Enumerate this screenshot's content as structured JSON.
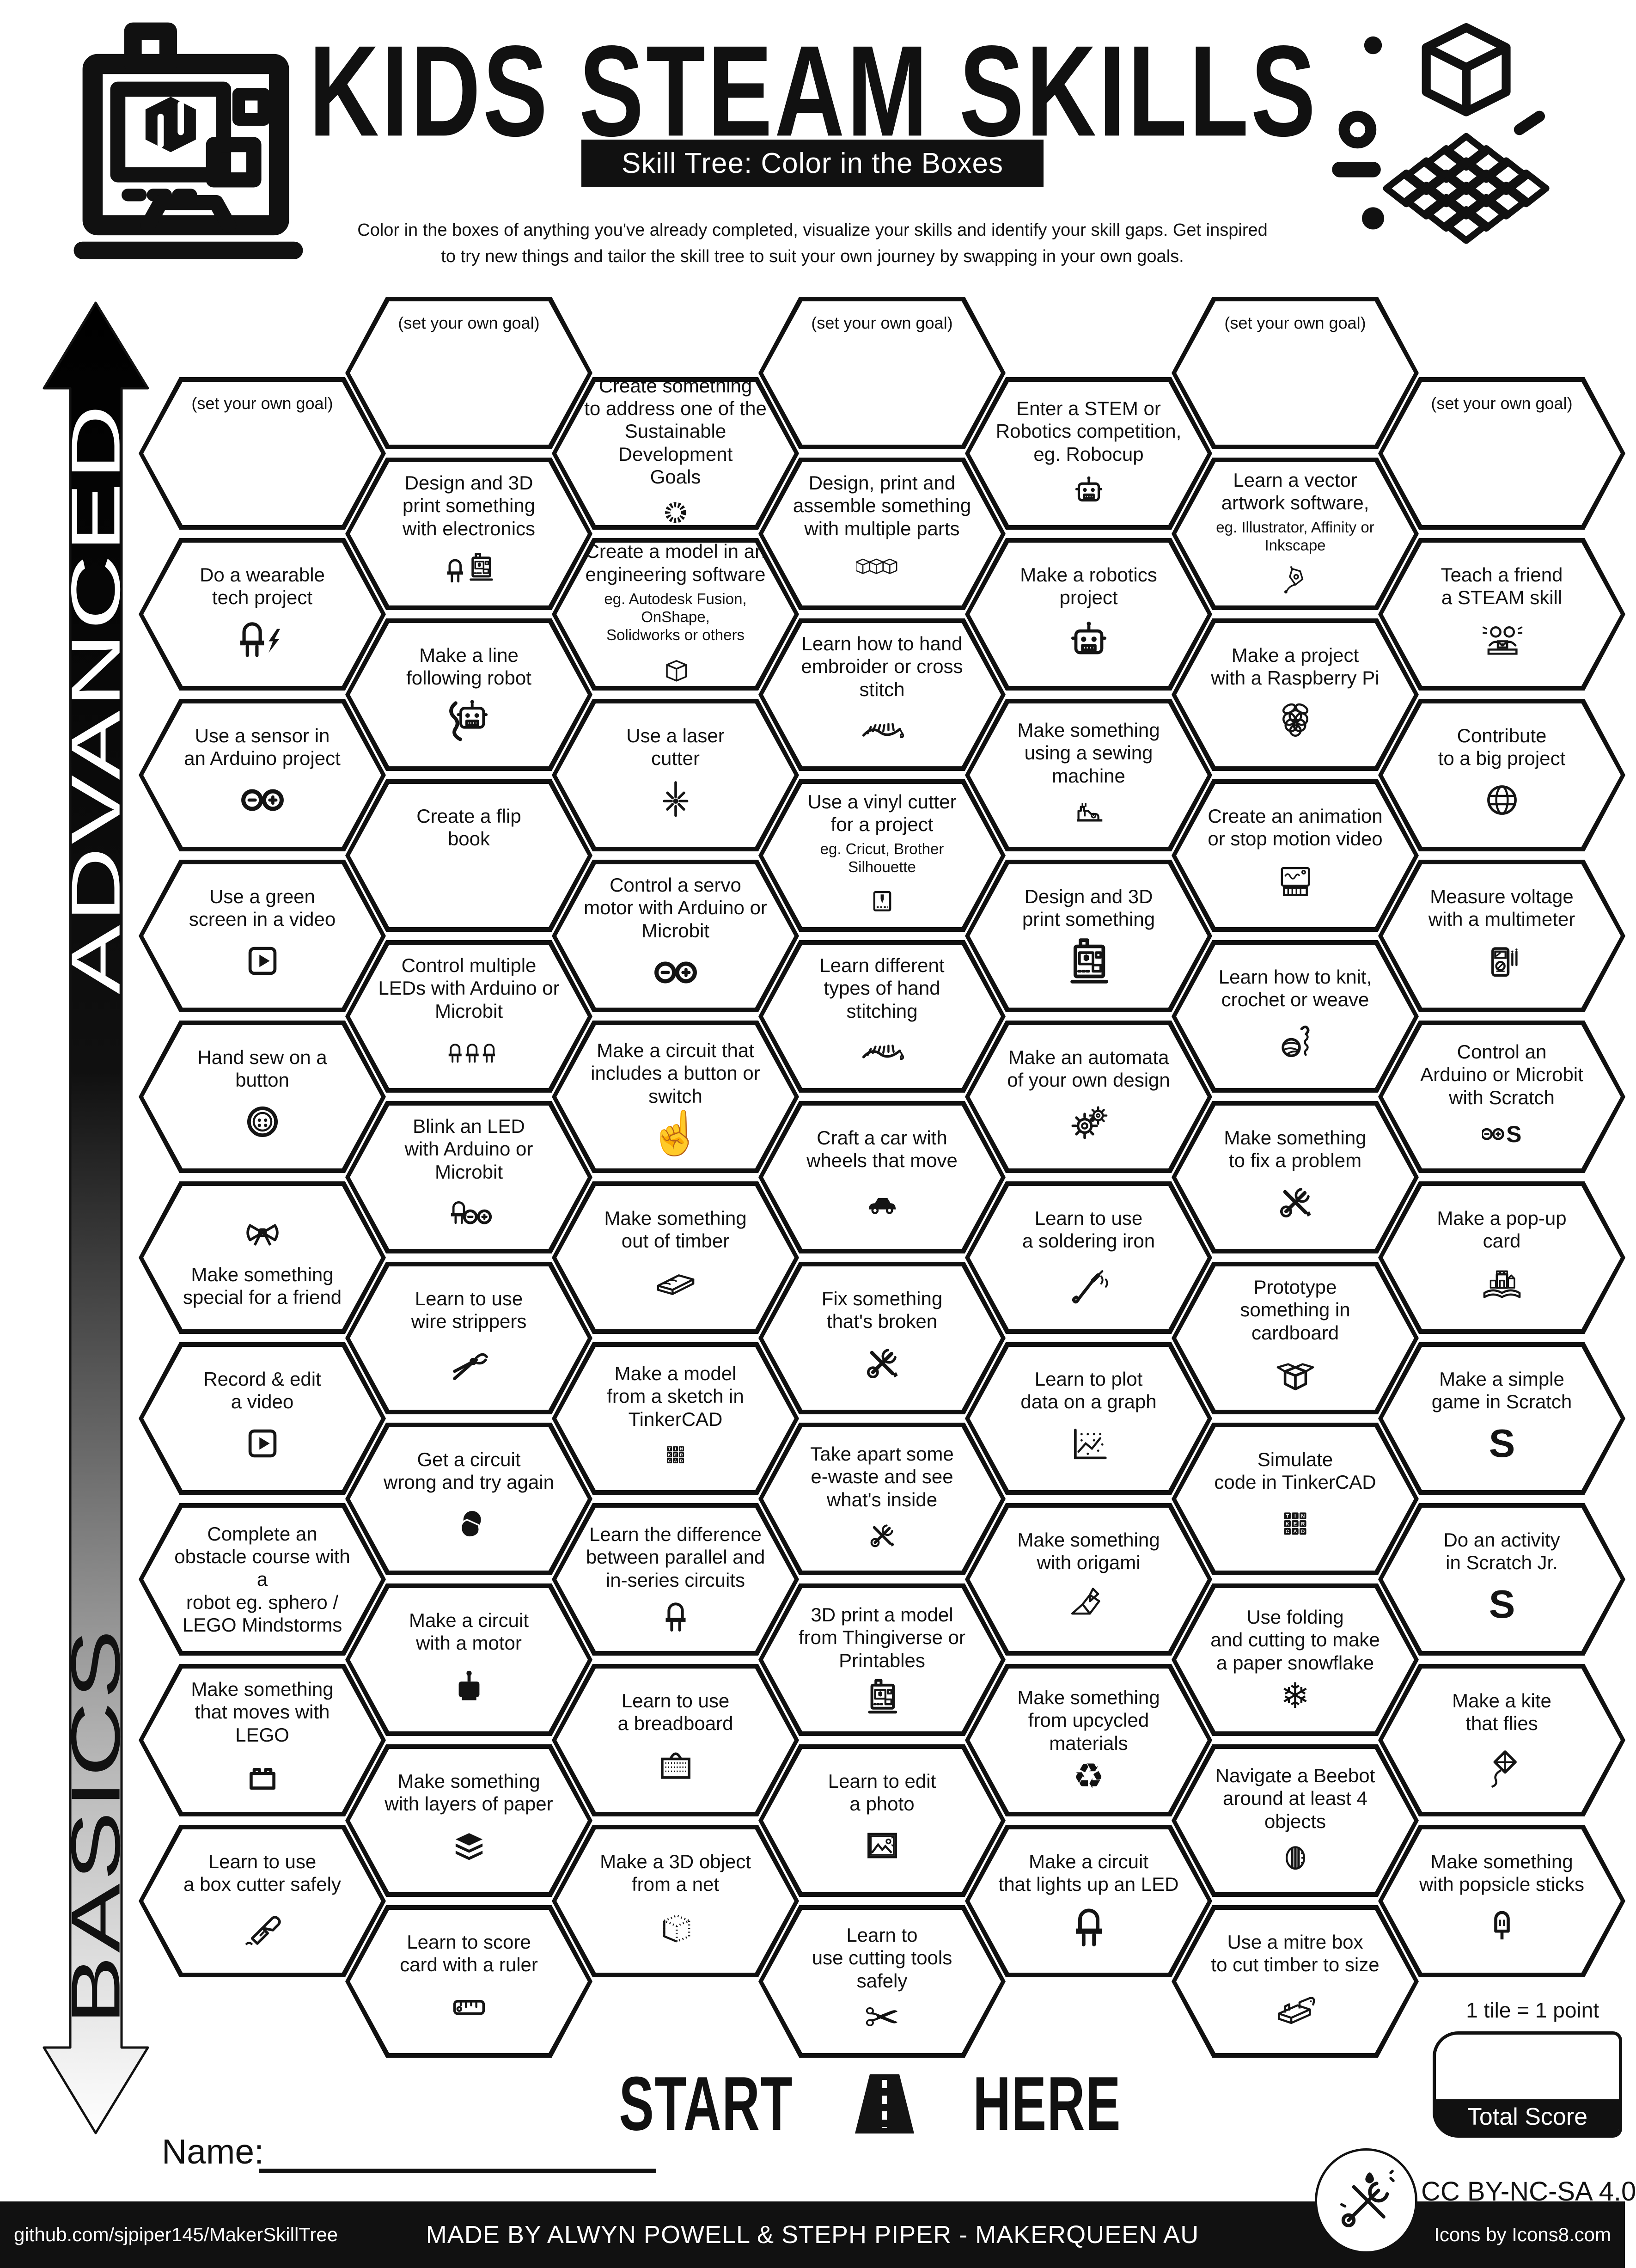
{
  "colors": {
    "ink": "#111111",
    "paper": "#ffffff"
  },
  "header": {
    "title": "KIDS STEAM SKILLS",
    "subtitle": "Skill Tree: Color in the Boxes",
    "description": "Color in the boxes of anything you've already completed, visualize your skills and identify your skill gaps.  Get inspired\nto try new things and tailor the skill tree to suit your own journey by swapping in your own goals."
  },
  "axis": {
    "top_label": "ADVANCED",
    "bottom_label": "BASICS"
  },
  "grid": {
    "columns": [
      {
        "tiles": [
          {
            "goal": true,
            "label": "(set your own goal)"
          },
          {
            "label": "Do a wearable\ntech project",
            "icon": "ledbolt"
          },
          {
            "label": "Use a sensor in\nan Arduino project",
            "icon": "arduino"
          },
          {
            "label": "Use a green\nscreen in a video",
            "icon": "play"
          },
          {
            "label": "Hand sew on a\nbutton",
            "icon": "button"
          },
          {
            "label": "Make something\nspecial for a friend",
            "icon": "bow",
            "icon_first": true
          },
          {
            "label": "Record & edit\na video",
            "icon": "play"
          },
          {
            "label": "Complete an\nobstacle course with a\nrobot eg. sphero /\nLEGO Mindstorms"
          },
          {
            "label": "Make something\nthat moves with\nLEGO",
            "icon": "lego"
          },
          {
            "label": "Learn to use\na box cutter safely",
            "icon": "boxcutter"
          }
        ]
      },
      {
        "tiles": [
          {
            "goal": true,
            "label": "(set your own goal)"
          },
          {
            "label": "Design and 3D\nprint something\nwith electronics",
            "icon": "ledprinter"
          },
          {
            "label": "Make a line\nfollowing robot",
            "icon": "linerobot"
          },
          {
            "label": "Create a flip\nbook",
            "icon": "book"
          },
          {
            "label": "Control multiple\nLEDs with Arduino or\nMicrobit",
            "icon": "leds3"
          },
          {
            "label": "Blink an LED\nwith Arduino or\nMicrobit",
            "icon": "ledarduino"
          },
          {
            "label": "Learn to use\nwire strippers",
            "icon": "strippers"
          },
          {
            "label": "Get a circuit\nwrong and try again",
            "icon": "facepalm"
          },
          {
            "label": "Make a circuit\nwith a motor",
            "icon": "motor"
          },
          {
            "label": "Make something\nwith layers of paper",
            "icon": "layers"
          },
          {
            "label": "Learn to score\ncard with a ruler",
            "icon": "ruler"
          }
        ]
      },
      {
        "tiles": [
          {
            "label": "Create something\nto address one of the\nSustainable Development\nGoals",
            "icon": "sdg",
            "icon_small": true
          },
          {
            "label": "Create a model in an\nengineering software",
            "sub": "eg. Autodesk Fusion, OnShape,\nSolidworks or others",
            "icon": "cube",
            "icon_small": true
          },
          {
            "label": "Use a laser\ncutter",
            "icon": "laser"
          },
          {
            "label": "Control a servo\nmotor with Arduino or\nMicrobit",
            "icon": "arduino"
          },
          {
            "label": "Make a circuit that\nincludes a button or\nswitch",
            "icon": "press",
            "glyph": "☝"
          },
          {
            "label": "Make something\nout of timber",
            "icon": "timber"
          },
          {
            "label": "Make a model\nfrom a sketch in\nTinkerCAD",
            "icon": "tinkercad",
            "icon_small": true
          },
          {
            "label": "Learn the difference\nbetween parallel and\nin-series circuits",
            "icon": "led",
            "icon_small": true
          },
          {
            "label": "Learn to use\na breadboard",
            "icon": "breadboard"
          },
          {
            "label": "Make a 3D object\nfrom a net",
            "icon": "netcube"
          }
        ]
      },
      {
        "tiles": [
          {
            "goal": true,
            "label": "(set your own goal)"
          },
          {
            "label": "Design, print and\nassemble something\nwith multiple parts",
            "icon": "cubes3"
          },
          {
            "label": "Learn how to hand\nembroider or cross stitch",
            "icon": "stitch"
          },
          {
            "label": "Use a vinyl cutter\nfor a project",
            "sub": "eg. Cricut, Brother\nSilhouette",
            "icon": "vinyl",
            "icon_small": true
          },
          {
            "label": "Learn different\ntypes of hand stitching",
            "icon": "stitch"
          },
          {
            "label": "Craft a car with\nwheels that move",
            "icon": "car"
          },
          {
            "label": "Fix something\nthat's broken",
            "icon": "tools"
          },
          {
            "label": "Take apart some\ne-waste and see\nwhat's inside",
            "icon": "tools",
            "icon_small": true
          },
          {
            "label": "3D print a model\nfrom Thingiverse or\nPrintables",
            "icon": "printer",
            "icon_small": true
          },
          {
            "label": "Learn to edit\na photo",
            "icon": "photo"
          },
          {
            "label": "Learn to\nuse cutting tools\nsafely",
            "icon": "scissors",
            "glyph": "✂"
          }
        ]
      },
      {
        "tiles": [
          {
            "label": "Enter a STEM or\nRobotics competition,\neg. Robocup",
            "icon": "robot",
            "icon_small": true
          },
          {
            "label": "Make a robotics\nproject",
            "icon": "robot"
          },
          {
            "label": "Make something\nusing a sewing\nmachine",
            "icon": "sewing",
            "icon_small": true
          },
          {
            "label": "Design and 3D\nprint something",
            "icon": "printer"
          },
          {
            "label": "Make an automata\nof your own design",
            "icon": "gears"
          },
          {
            "label": "Learn to use\na soldering iron",
            "icon": "solder"
          },
          {
            "label": "Learn to plot\ndata on a graph",
            "icon": "graph"
          },
          {
            "label": "Make something\nwith origami",
            "icon": "origami"
          },
          {
            "label": "Make something\nfrom upcycled\nmaterials",
            "icon": "recycle",
            "glyph": "♻",
            "icon_small": true
          },
          {
            "label": "Make a circuit\nthat lights up an LED",
            "icon": "led"
          }
        ]
      },
      {
        "tiles": [
          {
            "goal": true,
            "label": "(set your own goal)"
          },
          {
            "label": "Learn a vector\nartwork software,",
            "sub": "eg. Illustrator, Affinity or\nInkscape",
            "icon": "pentool",
            "icon_small": true
          },
          {
            "label": "Make a project\nwith a Raspberry Pi",
            "icon": "raspberry"
          },
          {
            "label": "Create an animation\nor stop motion video",
            "icon": "animation"
          },
          {
            "label": "Learn how to knit,\ncrochet or weave",
            "icon": "yarn"
          },
          {
            "label": "Make something\nto fix a problem",
            "icon": "tools"
          },
          {
            "label": "Prototype\nsomething in cardboard",
            "icon": "cardbox"
          },
          {
            "label": "Simulate\ncode in TinkerCAD",
            "icon": "tinkercad"
          },
          {
            "label": "Use folding\nand cutting to make\na paper snowflake",
            "icon": "snowflake",
            "glyph": "❄",
            "icon_small": true
          },
          {
            "label": "Navigate a Beebot\naround at least 4\nobjects",
            "icon": "beebot",
            "icon_small": true
          },
          {
            "label": "Use a mitre box\nto cut timber to size",
            "icon": "mitre"
          }
        ]
      },
      {
        "tiles": [
          {
            "goal": true,
            "label": "(set your own goal)"
          },
          {
            "label": "Teach a friend\na STEAM skill",
            "icon": "teach"
          },
          {
            "label": "Contribute\nto a big project",
            "icon": "globe"
          },
          {
            "label": "Measure voltage\nwith a multimeter",
            "icon": "multimeter"
          },
          {
            "label": "Control an\nArduino or Microbit\nwith Scratch",
            "icon": "arduinoscratch",
            "icon_small": true
          },
          {
            "label": "Make a pop-up\ncard",
            "icon": "popup"
          },
          {
            "label": "Make a simple\ngame in Scratch",
            "icon": "scratch"
          },
          {
            "label": "Do an activity\nin Scratch Jr.",
            "icon": "scratch"
          },
          {
            "label": "Make a kite\nthat flies",
            "icon": "kite"
          },
          {
            "label": "Make something\nwith popsicle sticks",
            "icon": "popsicle"
          }
        ]
      }
    ]
  },
  "start": {
    "start": "START",
    "here": "HERE"
  },
  "score": {
    "tile_point": "1 tile = 1 point",
    "total_label": "Total Score"
  },
  "name_label": "Name:",
  "license": "CC BY-NC-SA 4.0",
  "footer": {
    "left": "github.com/sjpiper145/MakerSkillTree",
    "center": "MADE BY ALWYN POWELL & STEPH PIPER  -  MAKERQUEEN AU",
    "right": "Icons by Icons8.com"
  }
}
